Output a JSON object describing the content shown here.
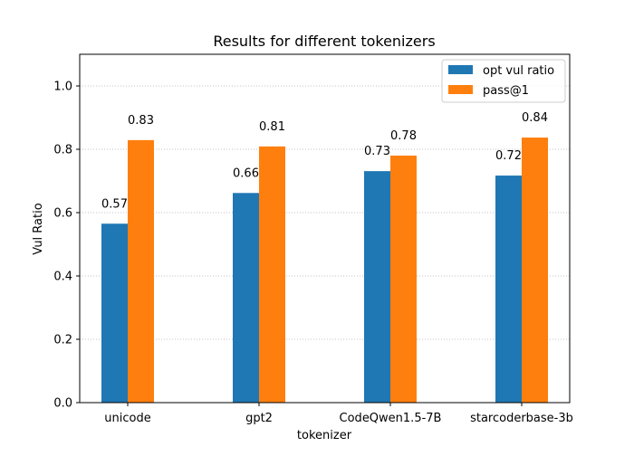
{
  "chart_data": {
    "type": "bar",
    "title": "Results for different tokenizers",
    "xlabel": "tokenizer",
    "ylabel": "Vul Ratio",
    "categories": [
      "unicode",
      "gpt2",
      "CodeQwen1.5-7B",
      "starcoderbase-3b"
    ],
    "series": [
      {
        "name": "opt vul ratio",
        "color": "#1f77b4",
        "values": [
          0.565,
          0.662,
          0.731,
          0.717
        ],
        "labels": [
          "0.57",
          "0.66",
          "0.73",
          "0.72"
        ]
      },
      {
        "name": "pass@1",
        "color": "#ff7f0e",
        "values": [
          0.829,
          0.809,
          0.78,
          0.837
        ],
        "labels": [
          "0.83",
          "0.81",
          "0.78",
          "0.84"
        ]
      }
    ],
    "ylim": [
      0,
      1.1
    ],
    "yticks": [
      0.0,
      0.2,
      0.4,
      0.6,
      0.8,
      1.0
    ],
    "ytick_labels": [
      "0.0",
      "0.2",
      "0.4",
      "0.6",
      "0.8",
      "1.0"
    ],
    "grid": "y-dotted",
    "legend_position": "top-right"
  }
}
